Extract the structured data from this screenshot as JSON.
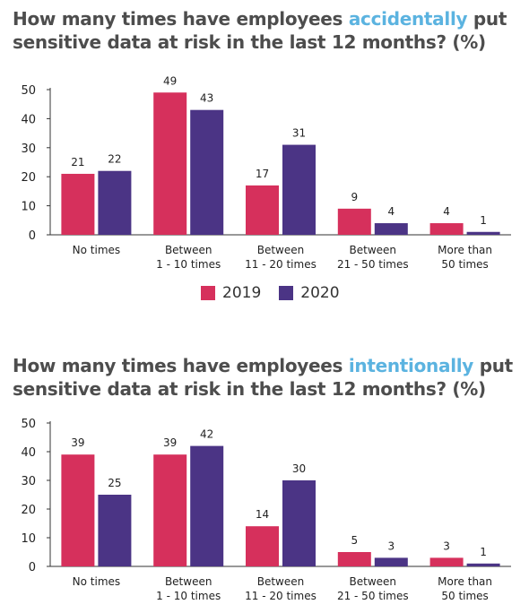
{
  "chart_data": [
    {
      "type": "bar",
      "title_parts": [
        "How many times have employees ",
        "accidentally",
        " put sensitive data at risk in the last 12 months? (%)"
      ],
      "categories": [
        [
          "No times"
        ],
        [
          "Between",
          "1 - 10 times"
        ],
        [
          "Between",
          "11 - 20 times"
        ],
        [
          "Between",
          "21 - 50 times"
        ],
        [
          "More than",
          "50 times"
        ]
      ],
      "series": [
        {
          "name": "2019",
          "color": "#d6305c",
          "values": [
            21,
            49,
            17,
            9,
            4
          ]
        },
        {
          "name": "2020",
          "color": "#4b3485",
          "values": [
            22,
            43,
            31,
            4,
            1
          ]
        }
      ],
      "ylim": [
        0,
        50
      ],
      "yticks": [
        0,
        10,
        20,
        30,
        40,
        50
      ],
      "legend": "bottom-center"
    },
    {
      "type": "bar",
      "title_parts": [
        "How many times have employees ",
        "intentionally",
        " put sensitive data at risk in the last 12 months? (%)"
      ],
      "categories": [
        [
          "No times"
        ],
        [
          "Between",
          "1 - 10 times"
        ],
        [
          "Between",
          "11 - 20 times"
        ],
        [
          "Between",
          "21 - 50 times"
        ],
        [
          "More than",
          "50 times"
        ]
      ],
      "series": [
        {
          "name": "2019",
          "color": "#d6305c",
          "values": [
            39,
            39,
            14,
            5,
            3
          ]
        },
        {
          "name": "2020",
          "color": "#4b3485",
          "values": [
            25,
            42,
            30,
            3,
            1
          ]
        }
      ],
      "ylim": [
        0,
        50
      ],
      "yticks": [
        0,
        10,
        20,
        30,
        40,
        50
      ]
    }
  ]
}
